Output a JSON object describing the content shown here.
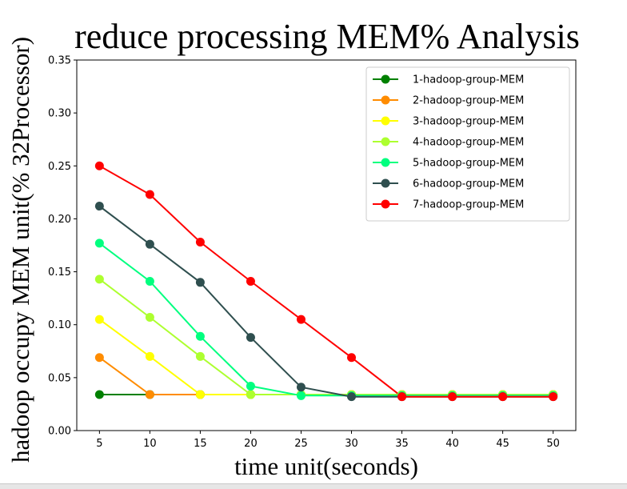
{
  "chart_data": {
    "type": "line",
    "title": "reduce processing MEM% Analysis",
    "xlabel": "time unit(seconds)",
    "ylabel": "hadoop occupy MEM unit(% 32Processor)",
    "x": [
      5,
      10,
      15,
      20,
      25,
      30,
      35,
      40,
      45,
      50
    ],
    "xlim": [
      2.75,
      52.25
    ],
    "ylim": [
      0.0,
      0.35
    ],
    "xticks": [
      "5",
      "10",
      "15",
      "20",
      "25",
      "30",
      "35",
      "40",
      "45",
      "50"
    ],
    "yticks": [
      "0.00",
      "0.05",
      "0.10",
      "0.15",
      "0.20",
      "0.25",
      "0.30",
      "0.35"
    ],
    "ytick_values": [
      0.0,
      0.05,
      0.1,
      0.15,
      0.2,
      0.25,
      0.3,
      0.35
    ],
    "grid": false,
    "legend_position": "top-right",
    "series": [
      {
        "name": "1-hadoop-group-MEM",
        "color": "#008000",
        "values": [
          0.034,
          0.034,
          0.034,
          0.034,
          0.034,
          0.034,
          0.034,
          0.034,
          0.034,
          0.034
        ]
      },
      {
        "name": "2-hadoop-group-MEM",
        "color": "#ff8c00",
        "values": [
          0.069,
          0.034,
          0.034,
          0.034,
          0.034,
          0.034,
          0.034,
          0.034,
          0.034,
          0.034
        ]
      },
      {
        "name": "3-hadoop-group-MEM",
        "color": "#ffff00",
        "values": [
          0.105,
          0.07,
          0.034,
          0.034,
          0.034,
          0.034,
          0.034,
          0.034,
          0.034,
          0.034
        ]
      },
      {
        "name": "4-hadoop-group-MEM",
        "color": "#adff2f",
        "values": [
          0.143,
          0.107,
          0.07,
          0.034,
          0.034,
          0.034,
          0.034,
          0.034,
          0.034,
          0.034
        ]
      },
      {
        "name": "5-hadoop-group-MEM",
        "color": "#00ff7f",
        "values": [
          0.177,
          0.141,
          0.089,
          0.042,
          0.033,
          0.033,
          0.033,
          0.033,
          0.033,
          0.033
        ]
      },
      {
        "name": "6-hadoop-group-MEM",
        "color": "#2f4f4f",
        "values": [
          0.212,
          0.176,
          0.14,
          0.088,
          0.041,
          0.032,
          0.032,
          0.032,
          0.032,
          0.032
        ]
      },
      {
        "name": "7-hadoop-group-MEM",
        "color": "#ff0000",
        "values": [
          0.25,
          0.223,
          0.178,
          0.141,
          0.105,
          0.069,
          0.032,
          0.032,
          0.032,
          0.032
        ]
      }
    ]
  }
}
